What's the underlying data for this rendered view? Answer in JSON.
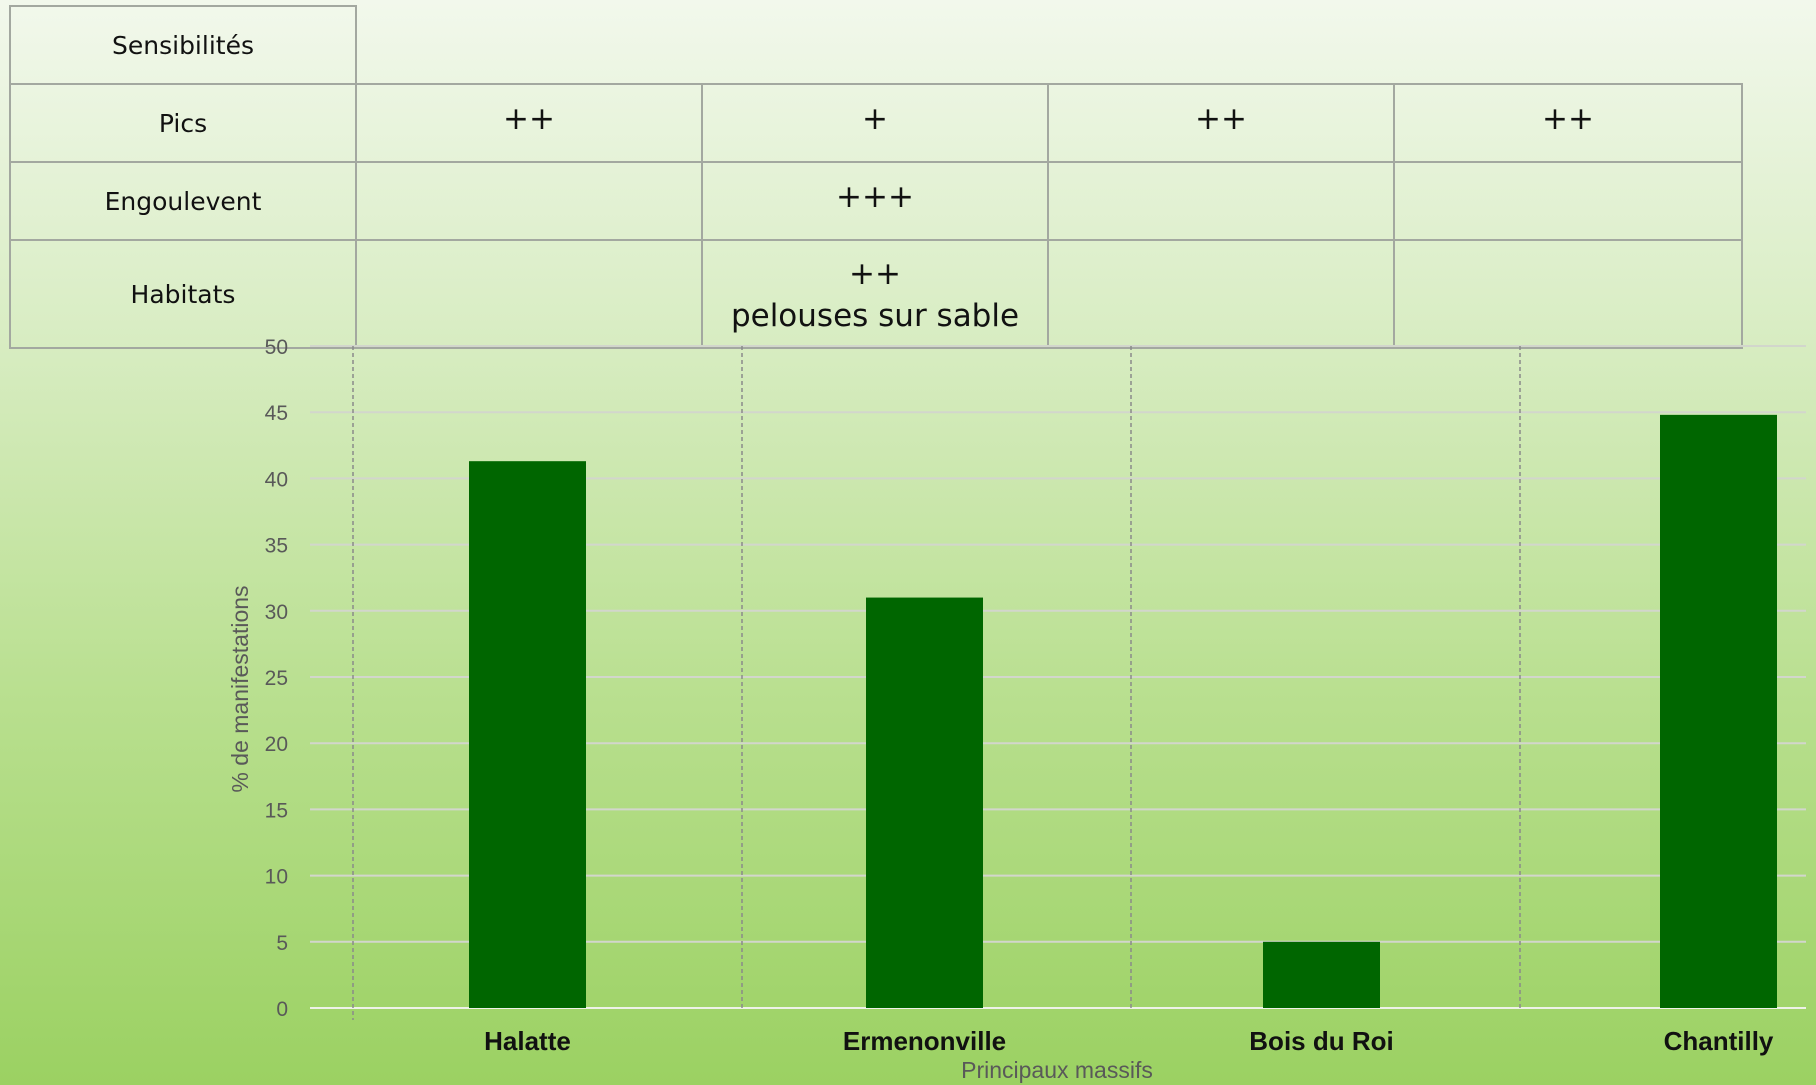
{
  "table": {
    "header": "Sensibilités",
    "rows": [
      {
        "label": "Pics",
        "cells": [
          "++",
          "+",
          "++",
          "++"
        ]
      },
      {
        "label": "Engoulevent",
        "cells": [
          "",
          "+++",
          "",
          ""
        ]
      },
      {
        "label": "Habitats",
        "cells": [
          "",
          "++\npelouses sur sable",
          "",
          ""
        ]
      }
    ]
  },
  "colors": {
    "bar": "#006600",
    "grid": "#d2d6cc",
    "axis_text": "#595959",
    "category_text": "#111111",
    "divider": "#8a8a8a"
  },
  "chart_data": {
    "type": "bar",
    "categories": [
      "Halatte",
      "Ermenonville",
      "Bois du Roi",
      "Chantilly"
    ],
    "values": [
      41.3,
      31,
      5,
      44.8
    ],
    "xlabel": "Principaux massifs",
    "ylabel": "% de manifestations",
    "ylim": [
      0,
      50
    ],
    "yticks": [
      "0",
      "5",
      "10",
      "15",
      "20",
      "25",
      "30",
      "35",
      "40",
      "45",
      "50"
    ],
    "grid": true,
    "legend": "none"
  }
}
